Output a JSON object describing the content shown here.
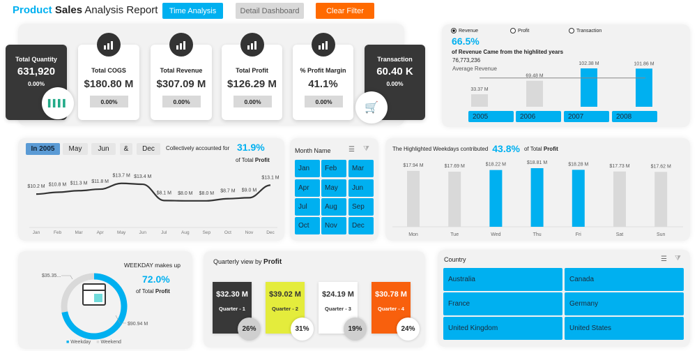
{
  "header": {
    "title_part1": "Product",
    "title_part2": "Sales",
    "title_part3": "Analysis Report",
    "buttons": {
      "time_analysis": "Time Analysis",
      "detail_dashboard": "Detail Dashboard",
      "clear_filter": "Clear Filter"
    }
  },
  "kpis": [
    {
      "label": "Total Quantity",
      "value": "631,920",
      "change": "0.00%",
      "style": "dark",
      "icon": "barcode-icon"
    },
    {
      "label": "Total COGS",
      "value": "$180.80 M",
      "change": "0.00%",
      "icon": "money-bag-hand-icon"
    },
    {
      "label": "Total Revenue",
      "value": "$307.09 M",
      "change": "0.00%",
      "icon": "growth-chart-icon"
    },
    {
      "label": "Total Profit",
      "value": "$126.29 M",
      "change": "0.00%",
      "icon": "profit-chart-icon"
    },
    {
      "label": "% Profit Margin",
      "value": "41.1%",
      "change": "0.00%",
      "icon": "dollar-growth-icon"
    },
    {
      "label": "Transaction",
      "value": "60.40 K",
      "change": "0.00%",
      "style": "dark",
      "icon": "shopping-cart-icon"
    }
  ],
  "years_panel": {
    "radios": [
      {
        "label": "Revenue",
        "selected": true
      },
      {
        "label": "Profit",
        "selected": false
      },
      {
        "label": "Transaction",
        "selected": false
      }
    ],
    "headline": "66.5%",
    "headline_text": "of Revenue Came from the highlited years",
    "average_value": "76,773,236",
    "average_label": "Average Revenue",
    "chart_data": {
      "type": "bar",
      "categories": [
        "2005",
        "2006",
        "2007",
        "2008"
      ],
      "values": [
        33.37,
        69.48,
        102.38,
        101.86
      ],
      "labels": [
        "33.37 M",
        "69.48 M",
        "102.38 M",
        "101.86 M"
      ],
      "highlighted": [
        false,
        false,
        true,
        true
      ],
      "average": 76.77
    },
    "year_buttons": [
      "2005",
      "2006",
      "2007",
      "2008"
    ]
  },
  "monthly_panel": {
    "filters": [
      "In 2005",
      "May",
      "Jun",
      "&",
      "Dec"
    ],
    "text": "Collectively accounted for",
    "headline": "31.9%",
    "sub1": "of Total",
    "sub2": "Profit",
    "chart_data": {
      "type": "line",
      "categories": [
        "Jan",
        "Feb",
        "Mar",
        "Apr",
        "May",
        "Jun",
        "Jul",
        "Aug",
        "Sep",
        "Oct",
        "Nov",
        "Dec"
      ],
      "values": [
        10.2,
        10.8,
        11.3,
        11.8,
        13.7,
        13.4,
        8.1,
        8.0,
        8.0,
        8.7,
        9.0,
        13.1
      ],
      "labels": [
        "$10.2 M",
        "$10.8 M",
        "$11.3 M",
        "$11.8 M",
        "$13.7 M",
        "$13.4 M",
        "$8.1 M",
        "$8.0 M",
        "$8.0 M",
        "$8.7 M",
        "$9.0 M",
        "$13.1 M"
      ]
    }
  },
  "month_slicer": {
    "title": "Month Name",
    "items": [
      "Jan",
      "Feb",
      "Mar",
      "Apr",
      "May",
      "Jun",
      "Jul",
      "Aug",
      "Sep",
      "Oct",
      "Nov",
      "Dec"
    ]
  },
  "weekday_panel": {
    "text1": "The Highlighted Weekdays contributed",
    "headline": "43.8%",
    "text2": "of Total",
    "text3": "Profit",
    "chart_data": {
      "type": "bar",
      "categories": [
        "Mon",
        "Tue",
        "Wed",
        "Thu",
        "Fri",
        "Sat",
        "Sun"
      ],
      "values": [
        17.94,
        17.69,
        18.22,
        18.81,
        18.28,
        17.73,
        17.62
      ],
      "labels": [
        "$17.94 M",
        "$17.69 M",
        "$18.22 M",
        "$18.81 M",
        "$18.28 M",
        "$17.73 M",
        "$17.62 M"
      ],
      "highlighted": [
        false,
        false,
        true,
        true,
        true,
        false,
        false
      ]
    }
  },
  "donut_panel": {
    "title": "WEEKDAY makes up",
    "headline": "72.0%",
    "sub1": "of Total",
    "sub2": "Profit",
    "chart_data": {
      "type": "pie",
      "categories": [
        "Weekday",
        "Weekend"
      ],
      "values": [
        90.94,
        35.35
      ],
      "labels": [
        "$90.94 M",
        "$35.35..."
      ],
      "colors": [
        "#00b0f0",
        "#d9d9d9"
      ]
    },
    "legend": [
      "Weekday",
      "Weekend"
    ]
  },
  "quarterly_panel": {
    "title1": "Quarterly view by",
    "title2": "Profit",
    "quarters": [
      {
        "value": "$32.30 M",
        "label": "Quarter - 1",
        "share": "26%",
        "bg": "#383838",
        "fg": "#ffffff"
      },
      {
        "value": "$39.02 M",
        "label": "Quarter - 2",
        "share": "31%",
        "bg": "#e4ec3c",
        "fg": "#333333"
      },
      {
        "value": "$24.19 M",
        "label": "Quarter - 3",
        "share": "19%",
        "bg": "#ffffff",
        "fg": "#333333"
      },
      {
        "value": "$30.78 M",
        "label": "Quarter - 4",
        "share": "24%",
        "bg": "#f8600d",
        "fg": "#ffffff"
      }
    ]
  },
  "country_slicer": {
    "title": "Country",
    "items": [
      "Australia",
      "Canada",
      "France",
      "Germany",
      "United Kingdom",
      "United States"
    ]
  },
  "colors": {
    "accent": "#00b0f0",
    "orange": "#ff6a00",
    "dark": "#373737",
    "grey_bar": "#d9d9d9"
  }
}
